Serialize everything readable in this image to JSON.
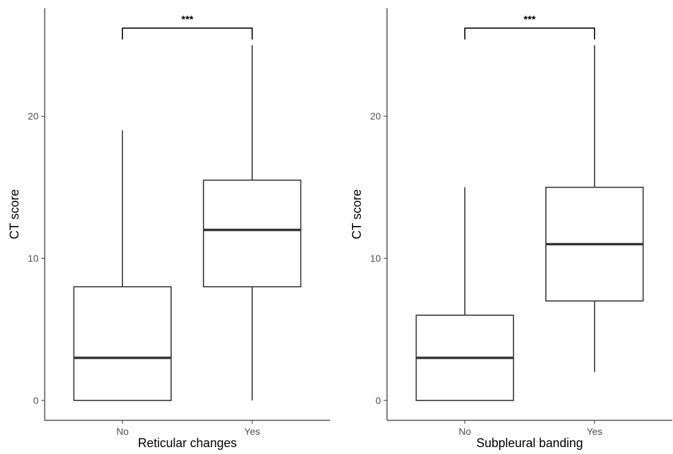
{
  "chart_data": [
    {
      "type": "boxplot",
      "categories": [
        "No",
        "Yes"
      ],
      "boxes": [
        {
          "category": "No",
          "whisker_low": 0,
          "q1": 0,
          "median": 3,
          "q3": 8,
          "whisker_high": 19
        },
        {
          "category": "Yes",
          "whisker_low": 0,
          "q1": 8,
          "median": 12,
          "q3": 15.5,
          "whisker_high": 25
        }
      ],
      "xlabel": "Reticular changes",
      "ylabel": "CT score",
      "yticks": [
        0,
        10,
        20
      ],
      "ylim": [
        -1.4,
        27.6
      ],
      "significance": {
        "label": "***",
        "between": [
          "No",
          "Yes"
        ],
        "y": 26.2,
        "tip": 25.4
      },
      "grid": false
    },
    {
      "type": "boxplot",
      "categories": [
        "No",
        "Yes"
      ],
      "boxes": [
        {
          "category": "No",
          "whisker_low": 0,
          "q1": 0,
          "median": 3,
          "q3": 6,
          "whisker_high": 15
        },
        {
          "category": "Yes",
          "whisker_low": 2,
          "q1": 7,
          "median": 11,
          "q3": 15,
          "whisker_high": 25
        }
      ],
      "xlabel": "Subpleural banding",
      "ylabel": "CT score",
      "yticks": [
        0,
        10,
        20
      ],
      "ylim": [
        -1.4,
        27.6
      ],
      "significance": {
        "label": "***",
        "between": [
          "No",
          "Yes"
        ],
        "y": 26.2,
        "tip": 25.4
      },
      "grid": false
    }
  ]
}
